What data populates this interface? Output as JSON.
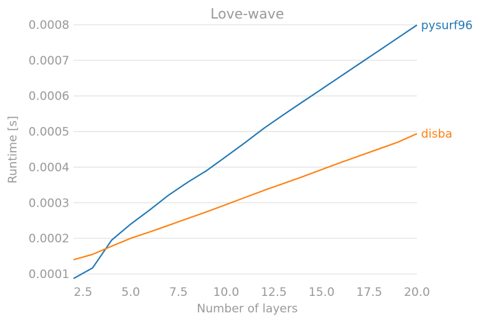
{
  "chart_data": {
    "type": "line",
    "title": "Love-wave",
    "xlabel": "Number of layers",
    "ylabel": "Runtime [s]",
    "xlim": [
      2.0,
      20.0
    ],
    "ylim": [
      0.0001,
      0.0008
    ],
    "xticks": [
      "2.5",
      "5.0",
      "7.5",
      "10.0",
      "12.5",
      "15.0",
      "17.5",
      "20.0"
    ],
    "yticks": [
      "0.0001",
      "0.0002",
      "0.0003",
      "0.0004",
      "0.0005",
      "0.0006",
      "0.0007",
      "0.0008"
    ],
    "grid": "horizontal",
    "legend": "none",
    "series": [
      {
        "name": "pysurf96",
        "color": "#1f77b4",
        "x": [
          2,
          3,
          4,
          5,
          6,
          7,
          8,
          9,
          10,
          11,
          12,
          13,
          14,
          15,
          16,
          17,
          18,
          19,
          20
        ],
        "y": [
          8.7e-05,
          0.000117,
          0.000195,
          0.00024,
          0.00028,
          0.000322,
          0.000358,
          0.000391,
          0.00043,
          0.000469,
          0.00051,
          0.000547,
          0.000583,
          0.000619,
          0.000655,
          0.000691,
          0.000727,
          0.000763,
          0.000799
        ]
      },
      {
        "name": "disba",
        "color": "#ff7f0e",
        "x": [
          2,
          3,
          4,
          5,
          6,
          7,
          8,
          9,
          10,
          11,
          12,
          13,
          14,
          15,
          16,
          17,
          18,
          19,
          20
        ],
        "y": [
          0.00014,
          0.000155,
          0.000178,
          0.0002,
          0.000218,
          0.000237,
          0.000256,
          0.000275,
          0.000295,
          0.000315,
          0.000335,
          0.000354,
          0.000373,
          0.000393,
          0.000413,
          0.000432,
          0.000451,
          0.00047,
          0.000494
        ]
      }
    ]
  }
}
